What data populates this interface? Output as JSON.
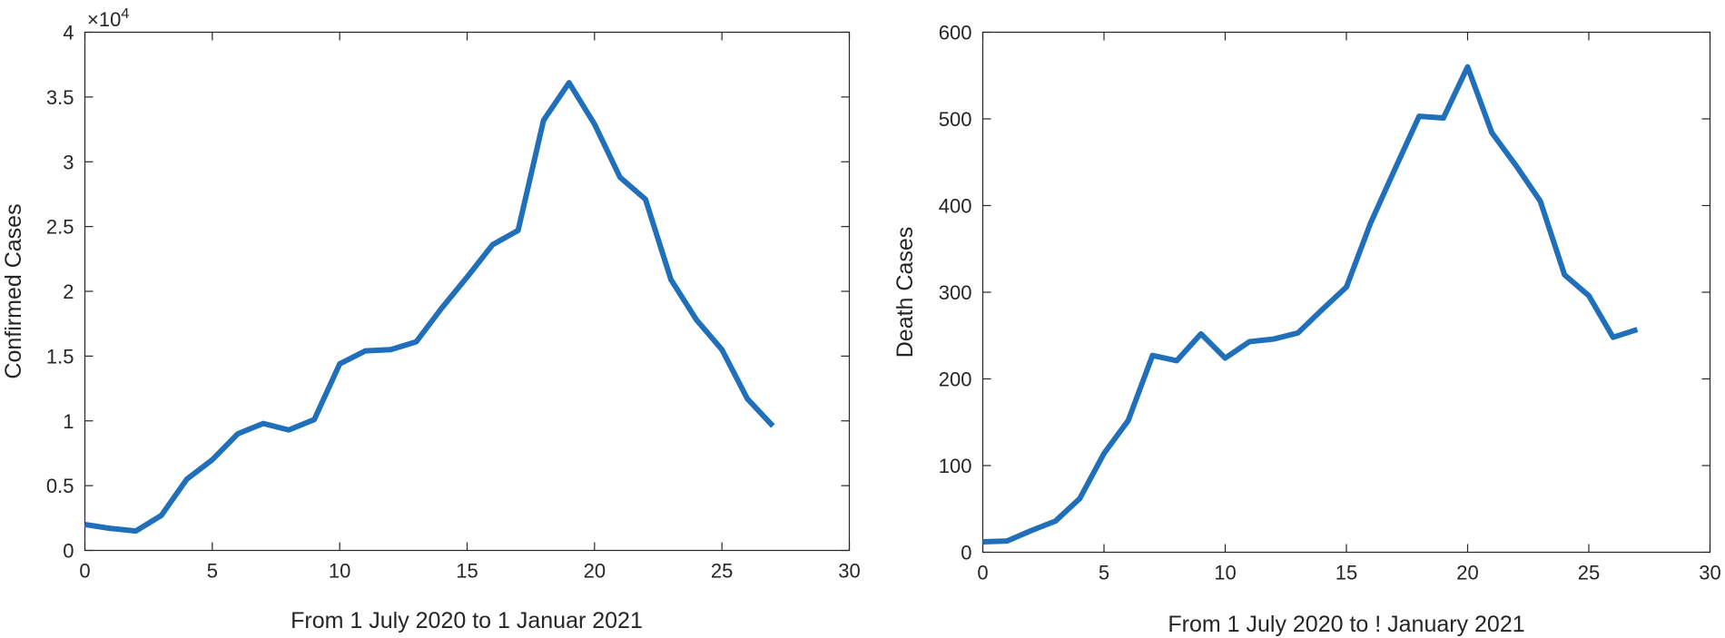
{
  "chart_data": [
    {
      "type": "line",
      "title": "",
      "xlabel": "From 1 July 2020 to 1 Januar 2021",
      "ylabel": "Confirmed Cases",
      "multiplier_label": "×10",
      "multiplier_exponent": "4",
      "xlim": [
        0,
        30
      ],
      "ylim": [
        0,
        4
      ],
      "xticks": [
        0,
        5,
        10,
        15,
        20,
        25,
        30
      ],
      "xtick_labels": [
        "0",
        "5",
        "10",
        "15",
        "20",
        "25",
        "30"
      ],
      "yticks": [
        0,
        0.5,
        1,
        1.5,
        2,
        2.5,
        3,
        3.5,
        4
      ],
      "ytick_labels": [
        "0",
        "0.5",
        "1",
        "1.5",
        "2",
        "2.5",
        "3",
        "3.5",
        "4"
      ],
      "grid": false,
      "color": "#1f6fba",
      "x": [
        0,
        1,
        2,
        3,
        4,
        5,
        6,
        7,
        8,
        9,
        10,
        11,
        12,
        13,
        14,
        15,
        16,
        17,
        18,
        19,
        20,
        21,
        22,
        23,
        24,
        25,
        26,
        27
      ],
      "y": [
        0.2,
        0.17,
        0.15,
        0.27,
        0.55,
        0.7,
        0.9,
        0.98,
        0.93,
        1.01,
        1.44,
        1.54,
        1.55,
        1.61,
        1.87,
        2.11,
        2.36,
        2.47,
        3.32,
        3.61,
        3.29,
        2.88,
        2.71,
        2.09,
        1.78,
        1.55,
        1.17,
        0.96
      ]
    },
    {
      "type": "line",
      "title": "",
      "xlabel": "From 1 July 2020 to ! January 2021",
      "ylabel": "Death Cases",
      "xlim": [
        0,
        30
      ],
      "ylim": [
        0,
        600
      ],
      "xticks": [
        0,
        5,
        10,
        15,
        20,
        25,
        30
      ],
      "xtick_labels": [
        "0",
        "5",
        "10",
        "15",
        "20",
        "25",
        "30"
      ],
      "yticks": [
        0,
        100,
        200,
        300,
        400,
        500,
        600
      ],
      "ytick_labels": [
        "0",
        "100",
        "200",
        "300",
        "400",
        "500",
        "600"
      ],
      "grid": false,
      "color": "#1f6fba",
      "x": [
        0,
        1,
        2,
        3,
        4,
        5,
        6,
        7,
        8,
        9,
        10,
        11,
        12,
        13,
        14,
        15,
        16,
        17,
        18,
        19,
        20,
        21,
        22,
        23,
        24,
        25,
        26,
        27
      ],
      "y": [
        12,
        13,
        25,
        36,
        62,
        114,
        152,
        227,
        221,
        252,
        224,
        243,
        246,
        253,
        280,
        306,
        380,
        442,
        503,
        501,
        560,
        484,
        446,
        405,
        320,
        296,
        248,
        257
      ]
    }
  ]
}
